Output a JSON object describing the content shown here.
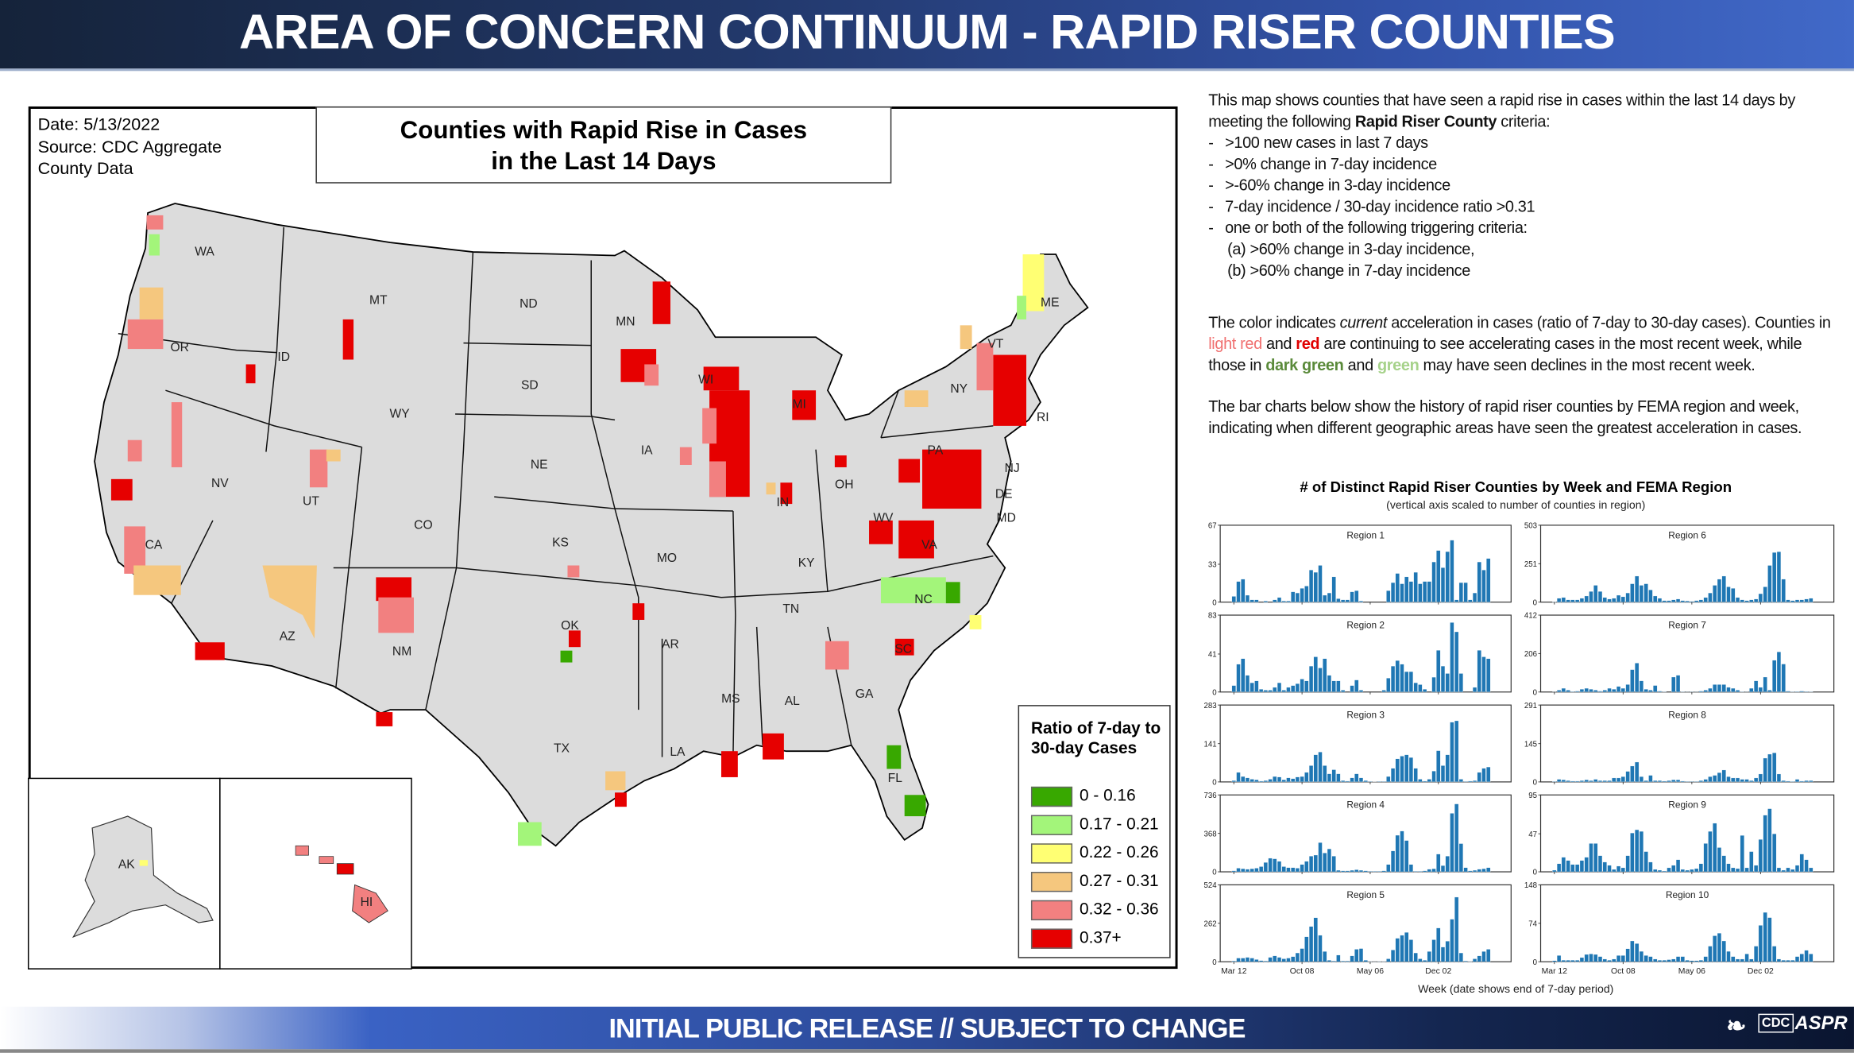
{
  "header": {
    "title": "AREA OF CONCERN CONTINUUM - RAPID RISER COUNTIES"
  },
  "map": {
    "date": "Date: 5/13/2022",
    "source_line1": "Source: CDC Aggregate",
    "source_line2": "County Data",
    "title_line1": "Counties with Rapid Rise in Cases",
    "title_line2": "in the Last 14 Days",
    "state_labels": [
      "WA",
      "OR",
      "ID",
      "MT",
      "ND",
      "MN",
      "SD",
      "WY",
      "NE",
      "IA",
      "WI",
      "MI",
      "NY",
      "ME",
      "VT",
      "NV",
      "UT",
      "CO",
      "KS",
      "MO",
      "IN",
      "OH",
      "PA",
      "NJ",
      "DE",
      "MD",
      "WV",
      "VA",
      "KY",
      "CA",
      "AZ",
      "NM",
      "OK",
      "TX",
      "AR",
      "TN",
      "NC",
      "SC",
      "MS",
      "AL",
      "GA",
      "LA",
      "FL",
      "RI",
      "AK",
      "HI"
    ],
    "legend": {
      "title": "Ratio of 7-day to 30-day Cases",
      "items": [
        {
          "label": "0 - 0.16",
          "color": "#38a800"
        },
        {
          "label": "0.17 - 0.21",
          "color": "#a3f57a"
        },
        {
          "label": "0.22 - 0.26",
          "color": "#ffff73"
        },
        {
          "label": "0.27 - 0.31",
          "color": "#f5c77e"
        },
        {
          "label": "0.32 - 0.36",
          "color": "#f28080"
        },
        {
          "label": "0.37+",
          "color": "#e60000"
        }
      ]
    }
  },
  "description": {
    "intro_a": "This map shows counties that have seen a rapid rise in cases within the last 14 days by meeting the following ",
    "intro_bold": "Rapid Riser County",
    "intro_b": " criteria:",
    "criteria": [
      ">100 new cases in last 7 days",
      ">0% change in 7-day incidence",
      ">-60% change in 3-day incidence",
      "7-day incidence / 30-day incidence ratio >0.31",
      "one or both of the following triggering criteria:"
    ],
    "sub_criteria": [
      "(a) >60% change in 3-day incidence,",
      "(b) >60% change in 7-day incidence"
    ],
    "color_a": "The color indicates ",
    "color_italic": "current",
    "color_b": " acceleration in cases (ratio of 7-day to 30-day cases). Counties in ",
    "light_red": "light red",
    "and1": " and ",
    "red": "red",
    "color_c": " are continuing to see accelerating cases in the most recent week, while those in ",
    "dark_green": "dark green",
    "and2": " and ",
    "green": "green",
    "color_d": " may have seen declines in the most recent week.",
    "bars_text": "The bar charts below show the history of rapid riser counties by FEMA region and week, indicating when different geographic areas have seen the greatest acceleration in cases."
  },
  "chart_data": {
    "type": "bar",
    "title": "# of Distinct Rapid Riser Counties by Week and FEMA Region",
    "subtitle": "(vertical axis scaled to number of counties in region)",
    "xlabel": "Week (date shows end of 7-day period)",
    "x_unit": "weeks since Mar 12 (sampled every 2 weeks)",
    "x": [
      0,
      2,
      4,
      6,
      8,
      10,
      12,
      14,
      16,
      18,
      20,
      22,
      24,
      26,
      28,
      30,
      32,
      34,
      36,
      38,
      40,
      42,
      44,
      46,
      48,
      50,
      52,
      54,
      56,
      58,
      60,
      62,
      64,
      66,
      68,
      70,
      72,
      74,
      76,
      78,
      80,
      82,
      84,
      86,
      88,
      90,
      92,
      94,
      96,
      98,
      100,
      102,
      104,
      106,
      108,
      110,
      112
    ],
    "xlim": [
      -6,
      122
    ],
    "xticks": [
      {
        "week": 0,
        "label": "Mar 12"
      },
      {
        "week": 30,
        "label": "Oct 08"
      },
      {
        "week": 60,
        "label": "May 06"
      },
      {
        "week": 90,
        "label": "Dec 02"
      }
    ],
    "color": "#1f77b4",
    "panels": [
      {
        "name": "Region 1",
        "ymax": 67,
        "ymid": 33,
        "yticks": [
          "67",
          "33",
          "0"
        ],
        "values": [
          5,
          18,
          20,
          6,
          2,
          2,
          0,
          1,
          0,
          2,
          4,
          1,
          1,
          9,
          8,
          12,
          14,
          28,
          26,
          32,
          6,
          8,
          22,
          3,
          2,
          2,
          9,
          10,
          1,
          0,
          0,
          0,
          0,
          0,
          10,
          17,
          25,
          16,
          22,
          18,
          26,
          16,
          18,
          18,
          35,
          45,
          30,
          44,
          54,
          2,
          17,
          17,
          2,
          8,
          35,
          28,
          38
        ]
      },
      {
        "name": "Region 2",
        "ymax": 83,
        "ymid": 41,
        "yticks": [
          "83",
          "41",
          "0"
        ],
        "values": [
          7,
          30,
          36,
          18,
          10,
          12,
          3,
          2,
          2,
          5,
          10,
          2,
          5,
          7,
          9,
          14,
          12,
          28,
          38,
          26,
          36,
          18,
          12,
          12,
          2,
          0,
          7,
          13,
          2,
          0,
          0,
          0,
          0,
          2,
          15,
          28,
          34,
          30,
          22,
          22,
          10,
          8,
          3,
          0,
          16,
          45,
          28,
          20,
          75,
          65,
          20,
          0,
          0,
          5,
          45,
          38,
          36
        ]
      },
      {
        "name": "Region 3",
        "ymax": 283,
        "ymid": 141,
        "yticks": [
          "283",
          "141",
          "0"
        ],
        "values": [
          5,
          35,
          20,
          15,
          10,
          8,
          3,
          5,
          10,
          20,
          18,
          8,
          15,
          12,
          18,
          20,
          35,
          60,
          100,
          110,
          60,
          30,
          45,
          30,
          5,
          3,
          15,
          30,
          15,
          5,
          2,
          1,
          2,
          2,
          20,
          50,
          85,
          95,
          100,
          90,
          50,
          10,
          3,
          10,
          40,
          115,
          60,
          100,
          220,
          225,
          10,
          2,
          3,
          5,
          35,
          50,
          55
        ]
      },
      {
        "name": "Region 4",
        "ymax": 736,
        "ymid": 368,
        "yticks": [
          "736",
          "368",
          "0"
        ],
        "values": [
          10,
          35,
          30,
          25,
          30,
          35,
          50,
          90,
          130,
          125,
          100,
          50,
          40,
          40,
          35,
          70,
          100,
          150,
          160,
          280,
          180,
          220,
          150,
          15,
          10,
          10,
          15,
          20,
          15,
          10,
          5,
          5,
          5,
          10,
          70,
          200,
          350,
          390,
          300,
          70,
          5,
          5,
          10,
          25,
          30,
          170,
          60,
          150,
          560,
          650,
          270,
          40,
          10,
          15,
          25,
          30,
          40
        ]
      },
      {
        "name": "Region 5",
        "ymax": 524,
        "ymid": 262,
        "yticks": [
          "524",
          "262",
          "0"
        ],
        "values": [
          5,
          25,
          25,
          30,
          25,
          15,
          8,
          5,
          30,
          40,
          30,
          20,
          25,
          35,
          60,
          90,
          170,
          240,
          300,
          180,
          70,
          10,
          5,
          45,
          5,
          5,
          40,
          85,
          90,
          10,
          2,
          1,
          2,
          2,
          20,
          80,
          160,
          180,
          200,
          150,
          60,
          20,
          10,
          70,
          150,
          230,
          100,
          140,
          290,
          440,
          60,
          5,
          2,
          20,
          40,
          70,
          85
        ]
      },
      {
        "name": "Region 6",
        "ymax": 503,
        "ymid": 251,
        "yticks": [
          "503",
          "251",
          "0"
        ],
        "values": [
          2,
          25,
          30,
          15,
          15,
          15,
          25,
          40,
          70,
          110,
          70,
          30,
          20,
          25,
          45,
          35,
          60,
          120,
          170,
          110,
          120,
          80,
          40,
          25,
          10,
          10,
          15,
          20,
          10,
          8,
          5,
          10,
          15,
          30,
          60,
          110,
          150,
          170,
          100,
          90,
          30,
          15,
          10,
          15,
          20,
          55,
          100,
          240,
          325,
          330,
          150,
          15,
          10,
          15,
          15,
          20,
          25
        ]
      },
      {
        "name": "Region 7",
        "ymax": 412,
        "ymid": 206,
        "yticks": [
          "412",
          "206",
          "0"
        ],
        "values": [
          1,
          10,
          20,
          10,
          3,
          5,
          15,
          20,
          15,
          10,
          5,
          10,
          20,
          15,
          30,
          20,
          40,
          120,
          155,
          60,
          15,
          10,
          35,
          5,
          2,
          0,
          80,
          90,
          2,
          1,
          2,
          1,
          5,
          10,
          20,
          40,
          40,
          40,
          25,
          20,
          10,
          2,
          1,
          20,
          60,
          25,
          80,
          10,
          170,
          215,
          150,
          5,
          2,
          3,
          5,
          3,
          2
        ]
      },
      {
        "name": "Region 8",
        "ymax": 291,
        "ymid": 145,
        "yticks": [
          "291",
          "145",
          "0"
        ],
        "values": [
          2,
          10,
          8,
          5,
          3,
          3,
          5,
          8,
          5,
          10,
          5,
          5,
          5,
          15,
          15,
          20,
          40,
          60,
          75,
          20,
          5,
          25,
          5,
          5,
          3,
          5,
          8,
          8,
          3,
          2,
          2,
          2,
          5,
          10,
          20,
          25,
          35,
          45,
          20,
          15,
          15,
          10,
          10,
          5,
          15,
          30,
          90,
          105,
          110,
          30,
          5,
          3,
          2,
          10,
          3,
          5,
          5
        ]
      },
      {
        "name": "Region 9",
        "ymax": 95,
        "ymid": 47,
        "yticks": [
          "95",
          "47",
          "0"
        ],
        "values": [
          2,
          10,
          18,
          14,
          9,
          9,
          14,
          18,
          35,
          35,
          20,
          12,
          8,
          3,
          7,
          5,
          20,
          48,
          52,
          50,
          25,
          12,
          3,
          2,
          1,
          5,
          8,
          15,
          3,
          2,
          3,
          4,
          10,
          35,
          50,
          60,
          30,
          20,
          10,
          5,
          4,
          45,
          5,
          25,
          8,
          40,
          70,
          78,
          47,
          5,
          2,
          5,
          3,
          8,
          22,
          15,
          5
        ]
      },
      {
        "name": "Region 10",
        "ymax": 148,
        "ymid": 74,
        "yticks": [
          "148",
          "74",
          "0"
        ],
        "values": [
          2,
          12,
          3,
          3,
          3,
          3,
          8,
          14,
          15,
          14,
          10,
          5,
          3,
          5,
          12,
          12,
          25,
          40,
          35,
          20,
          12,
          10,
          5,
          3,
          3,
          4,
          5,
          10,
          10,
          3,
          2,
          2,
          3,
          10,
          30,
          50,
          55,
          40,
          20,
          10,
          5,
          5,
          15,
          5,
          30,
          70,
          95,
          85,
          30,
          5,
          3,
          3,
          3,
          10,
          15,
          22,
          15
        ]
      }
    ]
  },
  "footer": {
    "text": "INITIAL PUBLIC RELEASE // SUBJECT TO CHANGE",
    "logo_cdc": "CDC",
    "logo_aspr": "ASPR"
  }
}
